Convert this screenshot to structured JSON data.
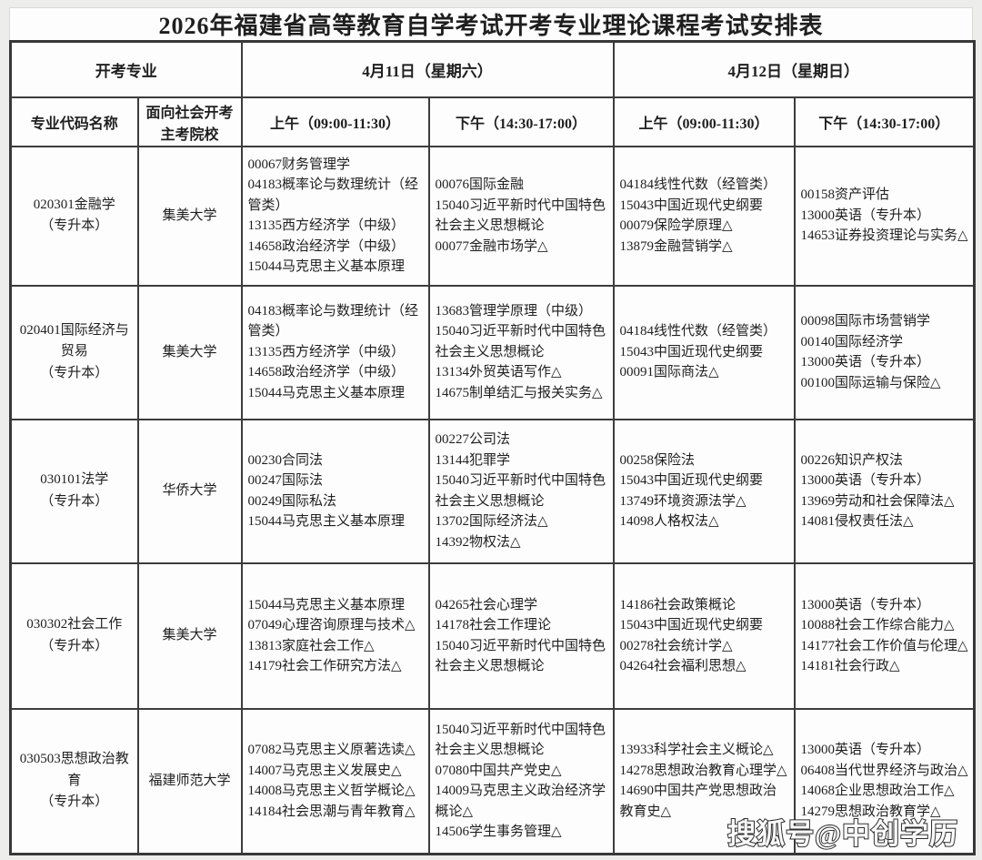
{
  "page": {
    "title": "2026年福建省高等教育自学考试开考专业理论课程考试安排表",
    "watermark": "搜狐号@中创学历"
  },
  "table": {
    "header": {
      "open_major_group": "开考专业",
      "day1": "4月11日（星期六）",
      "day2": "4月12日（星期日）",
      "major_code": "专业代码名称",
      "school": "面向社会开考主考院校",
      "day1_am": "上午（09:00-11:30）",
      "day1_pm": "下午（14:30-17:00）",
      "day2_am": "上午（09:00-11:30）",
      "day2_pm": "下午（14:30-17:00）"
    },
    "rows": [
      {
        "major_lines": [
          "020301金融学",
          "（专升本）"
        ],
        "school": "集美大学",
        "d1_am": [
          "00067财务管理学",
          "04183概率论与数理统计（经管类）",
          "13135西方经济学（中级）",
          "14658政治经济学（中级）",
          "15044马克思主义基本原理"
        ],
        "d1_pm": [
          "00076国际金融",
          "15040习近平新时代中国特色社会主义思想概论",
          "00077金融市场学△"
        ],
        "d2_am": [
          "04184线性代数（经管类）",
          "15043中国近现代史纲要",
          "00079保险学原理△",
          "13879金融营销学△"
        ],
        "d2_pm": [
          "00158资产评估",
          "13000英语（专升本）",
          "14653证券投资理论与实务△"
        ]
      },
      {
        "major_lines": [
          "020401国际经济与",
          "贸易",
          "（专升本）"
        ],
        "school": "集美大学",
        "d1_am": [
          "04183概率论与数理统计（经管类）",
          "13135西方经济学（中级）",
          "14658政治经济学（中级）",
          "15044马克思主义基本原理"
        ],
        "d1_pm": [
          "13683管理学原理（中级）",
          "15040习近平新时代中国特色社会主义思想概论",
          "13134外贸英语写作△",
          "14675制单结汇与报关实务△"
        ],
        "d2_am": [
          "04184线性代数（经管类）",
          "15043中国近现代史纲要",
          "00091国际商法△"
        ],
        "d2_pm": [
          "00098国际市场营销学",
          "00140国际经济学",
          "13000英语（专升本）",
          "00100国际运输与保险△"
        ]
      },
      {
        "major_lines": [
          "030101法学",
          "（专升本）"
        ],
        "school": "华侨大学",
        "d1_am": [
          "00230合同法",
          "00247国际法",
          "00249国际私法",
          "15044马克思主义基本原理"
        ],
        "d1_pm": [
          "00227公司法",
          "13144犯罪学",
          "15040习近平新时代中国特色社会主义思想概论",
          "13702国际经济法△",
          "14392物权法△"
        ],
        "d2_am": [
          "00258保险法",
          "15043中国近现代史纲要",
          "13749环境资源法学△",
          "14098人格权法△"
        ],
        "d2_pm": [
          "00226知识产权法",
          "13000英语（专升本）",
          "13969劳动和社会保障法△",
          "14081侵权责任法△"
        ]
      },
      {
        "major_lines": [
          "030302社会工作",
          "（专升本）"
        ],
        "school": "集美大学",
        "d1_am": [
          "15044马克思主义基本原理",
          "07049心理咨询原理与技术△",
          "13813家庭社会工作△",
          "14179社会工作研究方法△"
        ],
        "d1_pm": [
          "04265社会心理学",
          "14178社会工作理论",
          "15040习近平新时代中国特色社会主义思想概论"
        ],
        "d2_am": [
          "14186社会政策概论",
          "15043中国近现代史纲要",
          "00278社会统计学△",
          "04264社会福利思想△"
        ],
        "d2_pm": [
          "13000英语（专升本）",
          "10088社会工作综合能力△",
          "14177社会工作价值与伦理△",
          "14181社会行政△"
        ]
      },
      {
        "major_lines": [
          "030503思想政治教",
          "育",
          "（专升本）"
        ],
        "school": "福建师范大学",
        "d1_am": [
          "07082马克思主义原著选读△",
          "14007马克思主义发展史△",
          "14008马克思主义哲学概论△",
          "14184社会思潮与青年教育△"
        ],
        "d1_pm": [
          "15040习近平新时代中国特色社会主义思想概论",
          "07080中国共产党史△",
          "14009马克思主义政治经济学概论△",
          "14506学生事务管理△"
        ],
        "d2_am": [
          "13933科学社会主义概论△",
          "14278思想政治教育心理学△",
          "14690中国共产党思想政治教育史△"
        ],
        "d2_pm": [
          "13000英语（专升本）",
          "06408当代世界经济与政治△",
          "14068企业思想政治工作△",
          "14279思想政治教育学△"
        ]
      }
    ]
  }
}
